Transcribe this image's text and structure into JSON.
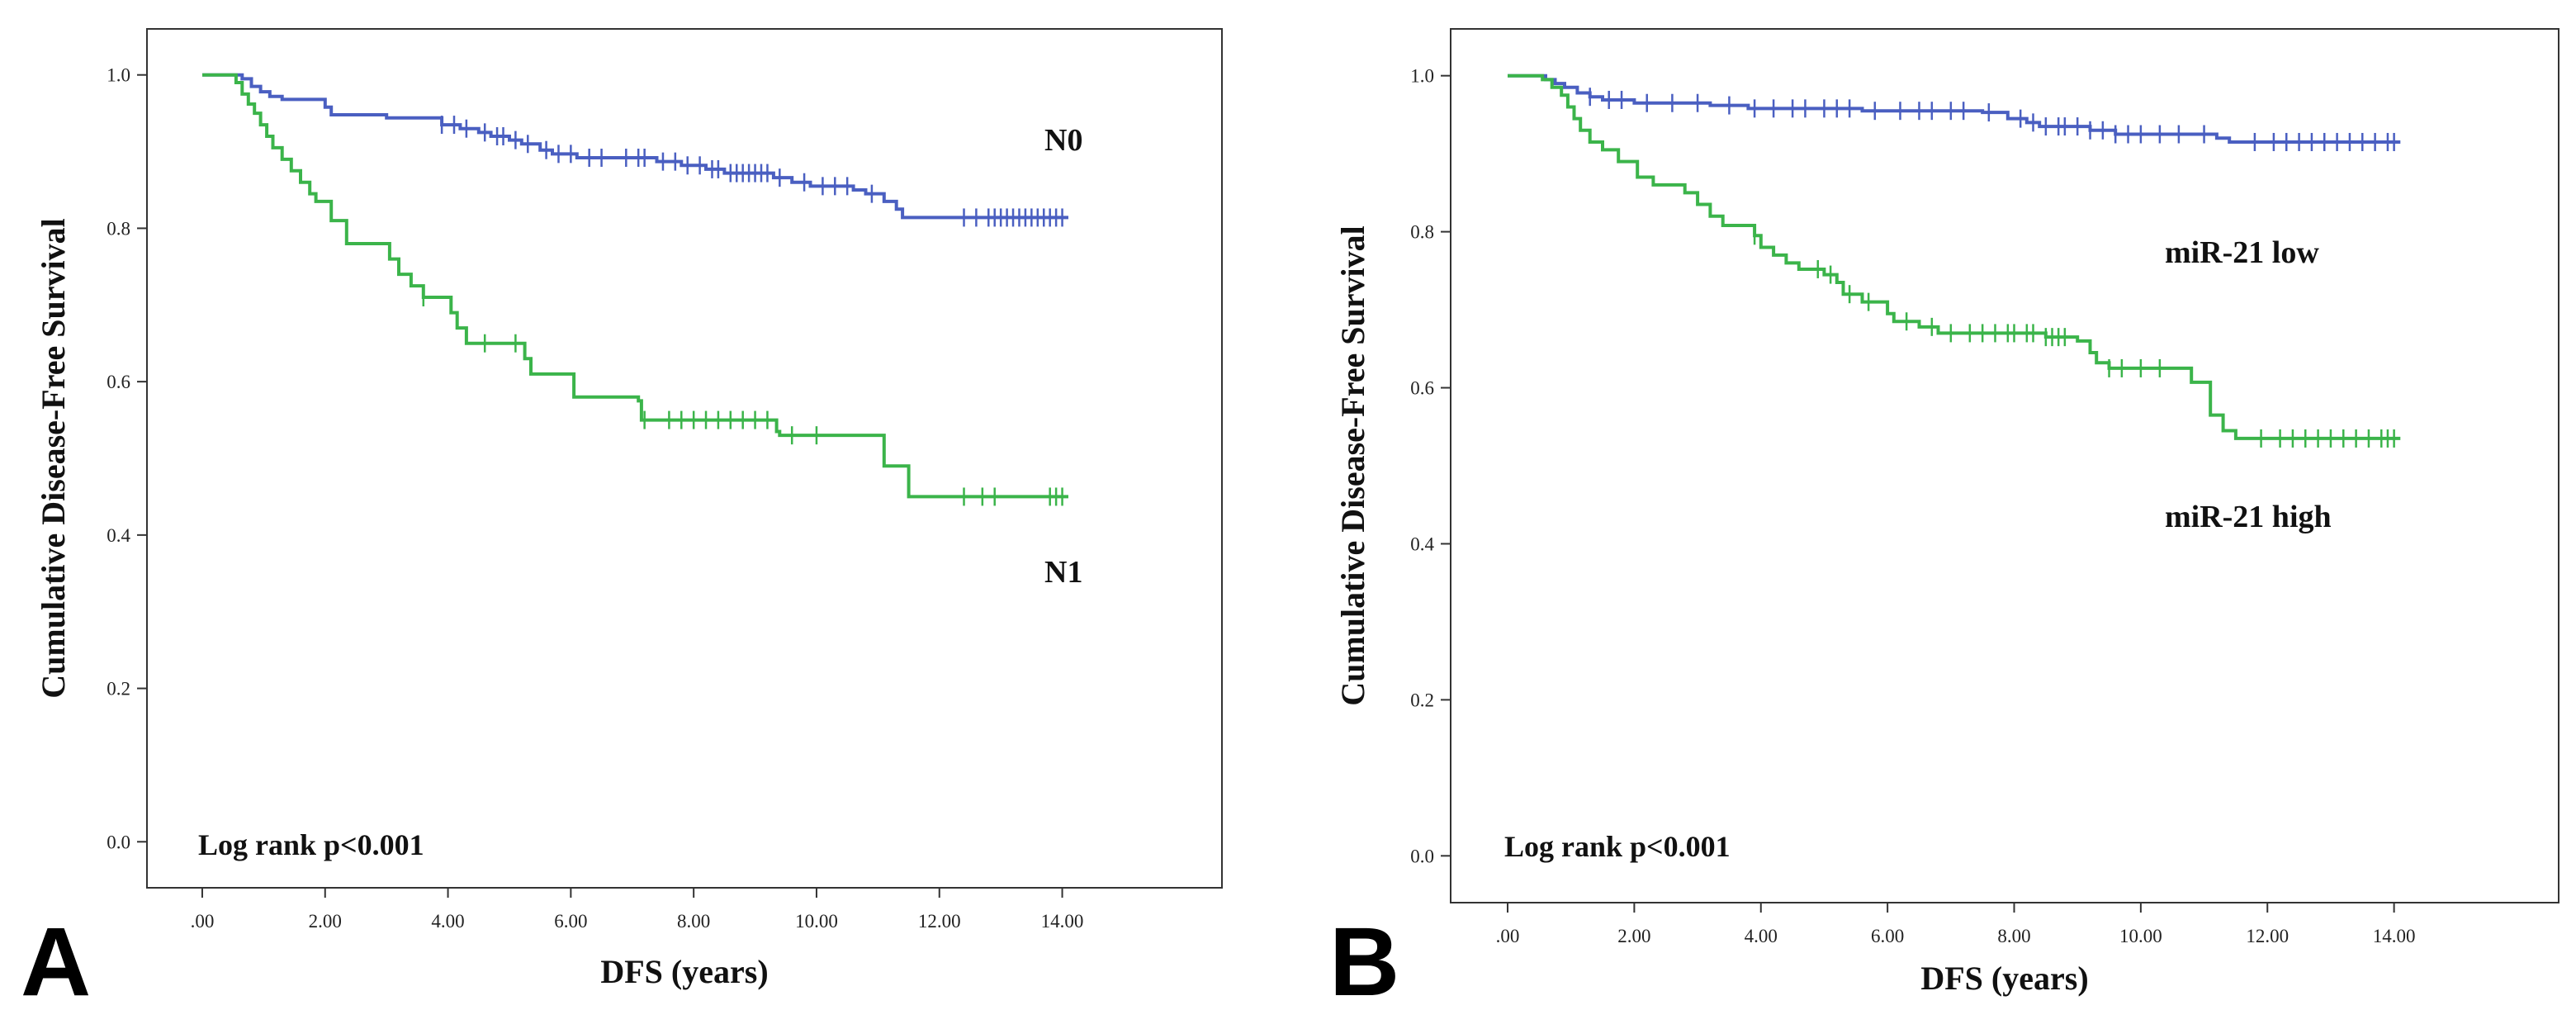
{
  "chart_data": [
    {
      "type": "line",
      "panel_letter": "A",
      "xlabel": "DFS (years)",
      "ylabel": "Cumulative Disease-Free Survival",
      "xlim": [
        -0.9,
        16.6
      ],
      "ylim": [
        -0.06,
        1.06
      ],
      "x_ticks": [
        0,
        2,
        4,
        6,
        8,
        10,
        12,
        14
      ],
      "x_tick_labels": [
        ".00",
        "2.00",
        "4.00",
        "6.00",
        "8.00",
        "10.00",
        "12.00",
        "14.00"
      ],
      "y_ticks": [
        0,
        0.2,
        0.4,
        0.6,
        0.8,
        1.0
      ],
      "y_tick_labels": [
        "0.0",
        "0.2",
        "0.4",
        "0.6",
        "0.8",
        "1.0"
      ],
      "grid": false,
      "annotation": "Log rank p<0.001",
      "series": [
        {
          "name": "N0",
          "color": "#4a5fc1",
          "steps": [
            [
              0,
              1.0
            ],
            [
              0.65,
              0.995
            ],
            [
              0.8,
              0.985
            ],
            [
              0.95,
              0.978
            ],
            [
              1.1,
              0.972
            ],
            [
              1.3,
              0.968
            ],
            [
              2.0,
              0.958
            ],
            [
              2.1,
              0.948
            ],
            [
              3.0,
              0.944
            ],
            [
              3.9,
              0.935
            ],
            [
              4.2,
              0.93
            ],
            [
              4.5,
              0.925
            ],
            [
              4.7,
              0.92
            ],
            [
              5.0,
              0.915
            ],
            [
              5.2,
              0.91
            ],
            [
              5.5,
              0.902
            ],
            [
              5.7,
              0.897
            ],
            [
              6.1,
              0.892
            ],
            [
              7.4,
              0.887
            ],
            [
              7.8,
              0.882
            ],
            [
              8.2,
              0.877
            ],
            [
              8.5,
              0.872
            ],
            [
              9.3,
              0.866
            ],
            [
              9.6,
              0.86
            ],
            [
              9.9,
              0.855
            ],
            [
              10.6,
              0.85
            ],
            [
              10.8,
              0.845
            ],
            [
              11.1,
              0.835
            ],
            [
              11.3,
              0.825
            ],
            [
              11.4,
              0.814
            ],
            [
              14.1,
              0.814
            ]
          ],
          "censored_x": [
            3.9,
            4.1,
            4.3,
            4.6,
            4.8,
            4.9,
            5.1,
            5.3,
            5.6,
            5.8,
            6.0,
            6.3,
            6.5,
            6.9,
            7.1,
            7.2,
            7.5,
            7.7,
            7.9,
            8.1,
            8.3,
            8.4,
            8.6,
            8.7,
            8.8,
            8.9,
            9.0,
            9.1,
            9.2,
            9.4,
            9.8,
            10.1,
            10.3,
            10.5,
            10.9,
            12.4,
            12.6,
            12.8,
            12.9,
            13.0,
            13.1,
            13.2,
            13.3,
            13.4,
            13.5,
            13.6,
            13.7,
            13.8,
            13.9,
            14.0
          ]
        },
        {
          "name": "N1",
          "color": "#3bb44a",
          "steps": [
            [
              0,
              1.0
            ],
            [
              0.55,
              0.99
            ],
            [
              0.65,
              0.975
            ],
            [
              0.75,
              0.962
            ],
            [
              0.85,
              0.95
            ],
            [
              0.95,
              0.935
            ],
            [
              1.05,
              0.92
            ],
            [
              1.15,
              0.905
            ],
            [
              1.3,
              0.89
            ],
            [
              1.45,
              0.875
            ],
            [
              1.6,
              0.86
            ],
            [
              1.75,
              0.845
            ],
            [
              1.85,
              0.835
            ],
            [
              2.1,
              0.81
            ],
            [
              2.35,
              0.78
            ],
            [
              3.05,
              0.76
            ],
            [
              3.2,
              0.74
            ],
            [
              3.4,
              0.725
            ],
            [
              3.6,
              0.71
            ],
            [
              4.05,
              0.69
            ],
            [
              4.15,
              0.67
            ],
            [
              4.3,
              0.65
            ],
            [
              5.25,
              0.63
            ],
            [
              5.35,
              0.61
            ],
            [
              6.05,
              0.58
            ],
            [
              7.1,
              0.575
            ],
            [
              7.15,
              0.55
            ],
            [
              9.35,
              0.535
            ],
            [
              9.4,
              0.53
            ],
            [
              11.1,
              0.49
            ],
            [
              11.5,
              0.45
            ],
            [
              14.1,
              0.45
            ]
          ],
          "censored_x": [
            3.6,
            4.6,
            5.1,
            7.2,
            7.6,
            7.8,
            8.0,
            8.2,
            8.4,
            8.6,
            8.8,
            9.0,
            9.2,
            9.6,
            10.0,
            12.4,
            12.7,
            12.9,
            13.8,
            13.9,
            14.0
          ]
        }
      ]
    },
    {
      "type": "line",
      "panel_letter": "B",
      "xlabel": "DFS (years)",
      "ylabel": "Cumulative Disease-Free Survival",
      "xlim": [
        -0.9,
        16.6
      ],
      "ylim": [
        -0.06,
        1.06
      ],
      "x_ticks": [
        0,
        2,
        4,
        6,
        8,
        10,
        12,
        14
      ],
      "x_tick_labels": [
        ".00",
        "2.00",
        "4.00",
        "6.00",
        "8.00",
        "10.00",
        "12.00",
        "14.00"
      ],
      "y_ticks": [
        0,
        0.2,
        0.4,
        0.6,
        0.8,
        1.0
      ],
      "y_tick_labels": [
        "0.0",
        "0.2",
        "0.4",
        "0.6",
        "0.8",
        "1.0"
      ],
      "grid": false,
      "annotation": "Log rank p<0.001",
      "series": [
        {
          "name": "miR-21 low",
          "color": "#4a5fc1",
          "steps": [
            [
              0,
              1.0
            ],
            [
              0.6,
              0.995
            ],
            [
              0.75,
              0.99
            ],
            [
              0.9,
              0.985
            ],
            [
              1.1,
              0.978
            ],
            [
              1.3,
              0.973
            ],
            [
              1.5,
              0.969
            ],
            [
              2.0,
              0.965
            ],
            [
              3.2,
              0.962
            ],
            [
              3.8,
              0.958
            ],
            [
              5.6,
              0.955
            ],
            [
              7.5,
              0.953
            ],
            [
              7.9,
              0.945
            ],
            [
              8.2,
              0.94
            ],
            [
              8.4,
              0.935
            ],
            [
              9.2,
              0.93
            ],
            [
              9.6,
              0.925
            ],
            [
              11.2,
              0.92
            ],
            [
              11.4,
              0.915
            ],
            [
              14.1,
              0.915
            ]
          ],
          "censored_x": [
            1.3,
            1.6,
            1.8,
            2.2,
            2.6,
            3.0,
            3.5,
            3.9,
            4.2,
            4.5,
            4.7,
            5.0,
            5.2,
            5.4,
            5.8,
            6.2,
            6.5,
            6.7,
            7.0,
            7.2,
            7.6,
            8.1,
            8.3,
            8.5,
            8.7,
            8.8,
            9.0,
            9.2,
            9.4,
            9.6,
            9.8,
            10.0,
            10.3,
            10.6,
            11.0,
            11.8,
            12.1,
            12.3,
            12.5,
            12.7,
            12.9,
            13.1,
            13.3,
            13.5,
            13.7,
            13.9,
            14.0
          ]
        },
        {
          "name": "miR-21 high",
          "color": "#3bb44a",
          "steps": [
            [
              0,
              1.0
            ],
            [
              0.55,
              0.995
            ],
            [
              0.7,
              0.985
            ],
            [
              0.85,
              0.975
            ],
            [
              0.95,
              0.96
            ],
            [
              1.05,
              0.945
            ],
            [
              1.15,
              0.93
            ],
            [
              1.3,
              0.915
            ],
            [
              1.5,
              0.905
            ],
            [
              1.75,
              0.89
            ],
            [
              2.05,
              0.87
            ],
            [
              2.3,
              0.86
            ],
            [
              2.8,
              0.85
            ],
            [
              3.0,
              0.835
            ],
            [
              3.2,
              0.82
            ],
            [
              3.4,
              0.808
            ],
            [
              3.9,
              0.795
            ],
            [
              4.0,
              0.78
            ],
            [
              4.2,
              0.77
            ],
            [
              4.4,
              0.76
            ],
            [
              4.6,
              0.752
            ],
            [
              5.0,
              0.745
            ],
            [
              5.2,
              0.735
            ],
            [
              5.3,
              0.72
            ],
            [
              5.6,
              0.71
            ],
            [
              6.0,
              0.695
            ],
            [
              6.1,
              0.685
            ],
            [
              6.5,
              0.678
            ],
            [
              6.8,
              0.67
            ],
            [
              8.5,
              0.665
            ],
            [
              9.0,
              0.66
            ],
            [
              9.2,
              0.645
            ],
            [
              9.3,
              0.632
            ],
            [
              9.5,
              0.625
            ],
            [
              10.8,
              0.607
            ],
            [
              11.1,
              0.565
            ],
            [
              11.3,
              0.545
            ],
            [
              11.5,
              0.535
            ],
            [
              14.1,
              0.535
            ]
          ],
          "censored_x": [
            3.9,
            4.9,
            5.1,
            5.4,
            5.7,
            6.3,
            6.7,
            7.0,
            7.3,
            7.5,
            7.7,
            7.9,
            8.0,
            8.2,
            8.3,
            8.5,
            8.6,
            8.7,
            8.8,
            9.5,
            9.7,
            10.0,
            10.3,
            11.9,
            12.2,
            12.4,
            12.6,
            12.8,
            13.0,
            13.2,
            13.4,
            13.6,
            13.8,
            13.9,
            14.0
          ]
        }
      ]
    }
  ]
}
